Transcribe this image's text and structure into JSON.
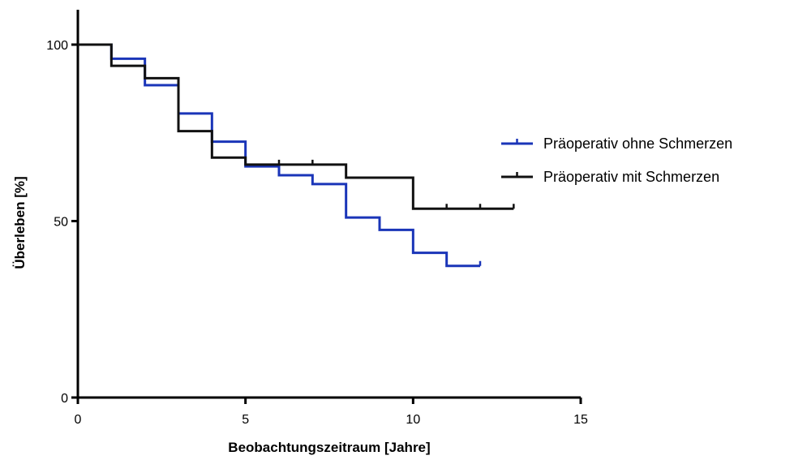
{
  "chart_data": {
    "type": "line",
    "subtype": "kaplan-meier step",
    "title": "",
    "xlabel": "Beobachtungszeitraum [Jahre]",
    "ylabel": "Überleben [%]",
    "xlim": [
      0,
      15
    ],
    "ylim": [
      0,
      100
    ],
    "x_ticks": [
      "0",
      "5",
      "10",
      "15"
    ],
    "y_ticks": [
      "0",
      "50",
      "100"
    ],
    "grid": false,
    "legend_position": "right",
    "series": [
      {
        "name": "Präoperativ ohne Schmerzen",
        "color": "#1a35b8",
        "steps": [
          [
            0,
            100
          ],
          [
            1,
            96
          ],
          [
            2,
            88.5
          ],
          [
            3,
            80.5
          ],
          [
            4,
            72.5
          ],
          [
            5,
            65.5
          ],
          [
            6,
            63
          ],
          [
            7,
            60.5
          ],
          [
            8,
            51
          ],
          [
            9,
            47.5
          ],
          [
            10,
            41
          ],
          [
            11,
            37.3
          ],
          [
            12,
            37.3
          ]
        ],
        "censored": [
          [
            12,
            37.3
          ]
        ]
      },
      {
        "name": "Präoperativ mit Schmerzen",
        "color": "#111111",
        "steps": [
          [
            0,
            100
          ],
          [
            1,
            94
          ],
          [
            2,
            90.5
          ],
          [
            3,
            75.5
          ],
          [
            4,
            68
          ],
          [
            5,
            66
          ],
          [
            8,
            62.3
          ],
          [
            10,
            53.5
          ],
          [
            13,
            53.5
          ]
        ],
        "censored": [
          [
            6,
            66
          ],
          [
            7,
            66
          ],
          [
            11,
            53.5
          ],
          [
            12,
            53.5
          ],
          [
            13,
            53.5
          ]
        ]
      }
    ]
  }
}
